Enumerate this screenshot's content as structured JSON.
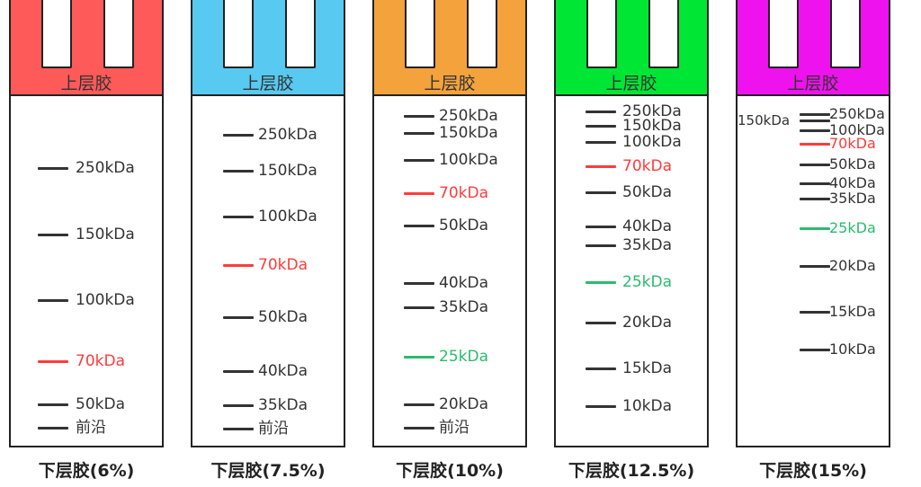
{
  "stacking_gel_label": "上层胶",
  "colors": {
    "band_default": "#333333",
    "band_red": "#ff3b3b",
    "band_green": "#2bbb6e"
  },
  "gels": [
    {
      "stack_color": "#ff5a5a",
      "resolving_label": "下层胶(6%)",
      "bands": [
        {
          "label": "250kDa",
          "color": "default"
        },
        {
          "label": "150kDa",
          "color": "default"
        },
        {
          "label": "100kDa",
          "color": "default"
        },
        {
          "label": "70kDa",
          "color": "red"
        },
        {
          "label": "50kDa",
          "color": "default"
        },
        {
          "label": "前沿",
          "color": "default"
        }
      ]
    },
    {
      "stack_color": "#58c9f0",
      "resolving_label": "下层胶(7.5%)",
      "bands": [
        {
          "label": "250kDa",
          "color": "default"
        },
        {
          "label": "150kDa",
          "color": "default"
        },
        {
          "label": "100kDa",
          "color": "default"
        },
        {
          "label": "70kDa",
          "color": "red"
        },
        {
          "label": "50kDa",
          "color": "default"
        },
        {
          "label": "40kDa",
          "color": "default"
        },
        {
          "label": "35kDa",
          "color": "default"
        },
        {
          "label": "前沿",
          "color": "default"
        }
      ]
    },
    {
      "stack_color": "#f4a23c",
      "resolving_label": "下层胶(10%)",
      "bands": [
        {
          "label": "250kDa",
          "color": "default"
        },
        {
          "label": "150kDa",
          "color": "default"
        },
        {
          "label": "100kDa",
          "color": "default"
        },
        {
          "label": "70kDa",
          "color": "red"
        },
        {
          "label": "50kDa",
          "color": "default"
        },
        {
          "label": "40kDa",
          "color": "default"
        },
        {
          "label": "35kDa",
          "color": "default"
        },
        {
          "label": "25kDa",
          "color": "green"
        },
        {
          "label": "20kDa",
          "color": "default"
        },
        {
          "label": "前沿",
          "color": "default"
        }
      ]
    },
    {
      "stack_color": "#00e634",
      "resolving_label": "下层胶(12.5%)",
      "bands": [
        {
          "label": "250kDa",
          "color": "default"
        },
        {
          "label": "150kDa",
          "color": "default"
        },
        {
          "label": "100kDa",
          "color": "default"
        },
        {
          "label": "70kDa",
          "color": "red"
        },
        {
          "label": "50kDa",
          "color": "default"
        },
        {
          "label": "40kDa",
          "color": "default"
        },
        {
          "label": "35kDa",
          "color": "default"
        },
        {
          "label": "25kDa",
          "color": "green"
        },
        {
          "label": "20kDa",
          "color": "default"
        },
        {
          "label": "15kDa",
          "color": "default"
        },
        {
          "label": "10kDa",
          "color": "default"
        }
      ]
    },
    {
      "stack_color": "#ee12ee",
      "resolving_label": "下层胶(15%)",
      "bands": [
        {
          "label": "250kDa",
          "color": "default"
        },
        {
          "label": "150kDa",
          "color": "default"
        },
        {
          "label": "100kDa",
          "color": "default"
        },
        {
          "label": "70kDa",
          "color": "red"
        },
        {
          "label": "50kDa",
          "color": "default"
        },
        {
          "label": "40kDa",
          "color": "default"
        },
        {
          "label": "35kDa",
          "color": "default"
        },
        {
          "label": "25kDa",
          "color": "green"
        },
        {
          "label": "20kDa",
          "color": "default"
        },
        {
          "label": "15kDa",
          "color": "default"
        },
        {
          "label": "10kDa",
          "color": "default"
        }
      ]
    }
  ]
}
